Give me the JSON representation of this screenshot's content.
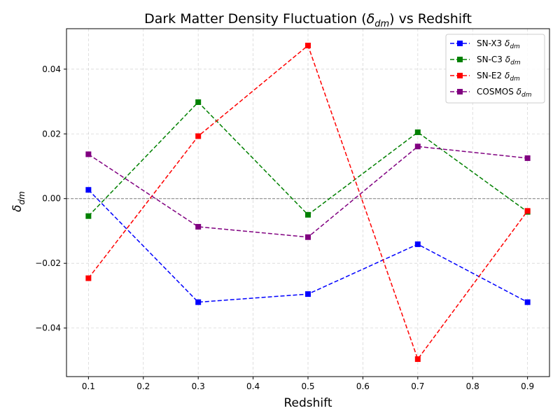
{
  "chart_data": {
    "type": "line",
    "title_main": "Dark Matter Density Fluctuation (",
    "title_symbol": "δ",
    "title_sub": "dm",
    "title_end": ") vs Redshift",
    "xlabel": "Redshift",
    "ylabel_symbol": "δ",
    "ylabel_sub": "dm",
    "x": [
      0.1,
      0.3,
      0.5,
      0.7,
      0.9
    ],
    "xlim": [
      0.06,
      0.94
    ],
    "ylim": [
      -0.055,
      0.0525
    ],
    "xticks": [
      "0.1",
      "0.2",
      "0.3",
      "0.4",
      "0.5",
      "0.6",
      "0.7",
      "0.8",
      "0.9"
    ],
    "yticks": [
      "−0.04",
      "−0.02",
      "0.00",
      "0.02",
      "0.04"
    ],
    "grid": true,
    "zero_line": true,
    "legend_position": "top-right",
    "series": [
      {
        "name": "SN-X3",
        "name_symbol": "δ",
        "name_sub": "dm",
        "color": "#0000ff",
        "marker": "square",
        "linestyle": "dashed",
        "values": [
          0.0027,
          -0.032,
          -0.0295,
          -0.0141,
          -0.032
        ]
      },
      {
        "name": "SN-C3",
        "name_symbol": "δ",
        "name_sub": "dm",
        "color": "#008000",
        "marker": "square",
        "linestyle": "dashed",
        "values": [
          -0.0054,
          0.0298,
          -0.005,
          0.0205,
          -0.0041
        ]
      },
      {
        "name": "SN-E2",
        "name_symbol": "δ",
        "name_sub": "dm",
        "color": "#ff0000",
        "marker": "square",
        "linestyle": "dashed",
        "values": [
          -0.0246,
          0.0193,
          0.0473,
          -0.0496,
          -0.0038
        ]
      },
      {
        "name": "COSMOS",
        "name_symbol": "δ",
        "name_sub": "dm",
        "color": "#800080",
        "marker": "square",
        "linestyle": "dashed",
        "values": [
          0.0137,
          -0.0087,
          -0.0119,
          0.0161,
          0.0125
        ]
      }
    ]
  }
}
